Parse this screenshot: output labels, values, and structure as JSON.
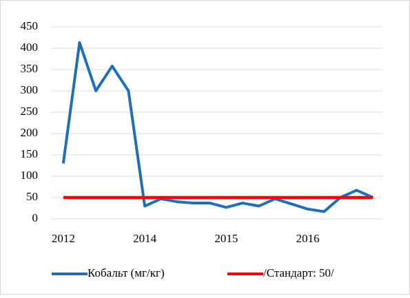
{
  "chart_data": {
    "type": "line",
    "categories": [
      "2012",
      null,
      null,
      null,
      null,
      "2014",
      null,
      null,
      null,
      null,
      "2015",
      null,
      null,
      null,
      null,
      "2016",
      null,
      null,
      null,
      null
    ],
    "series": [
      {
        "name": "Кобальт (мг/кг)",
        "color": "#1f6fb8",
        "values": [
          130,
          413,
          300,
          358,
          300,
          30,
          47,
          40,
          37,
          37,
          27,
          37,
          30,
          47,
          35,
          23,
          17,
          50,
          67,
          50
        ]
      },
      {
        "name": "/Стандарт: 50/",
        "color": "#ff0000",
        "values": [
          50,
          50,
          50,
          50,
          50,
          50,
          50,
          50,
          50,
          50,
          50,
          50,
          50,
          50,
          50,
          50,
          50,
          50,
          50,
          50
        ]
      }
    ],
    "ylim": [
      0,
      450
    ],
    "yticks": [
      0,
      50,
      100,
      150,
      200,
      250,
      300,
      350,
      400,
      450
    ],
    "grid": true,
    "legend": "bottom"
  }
}
